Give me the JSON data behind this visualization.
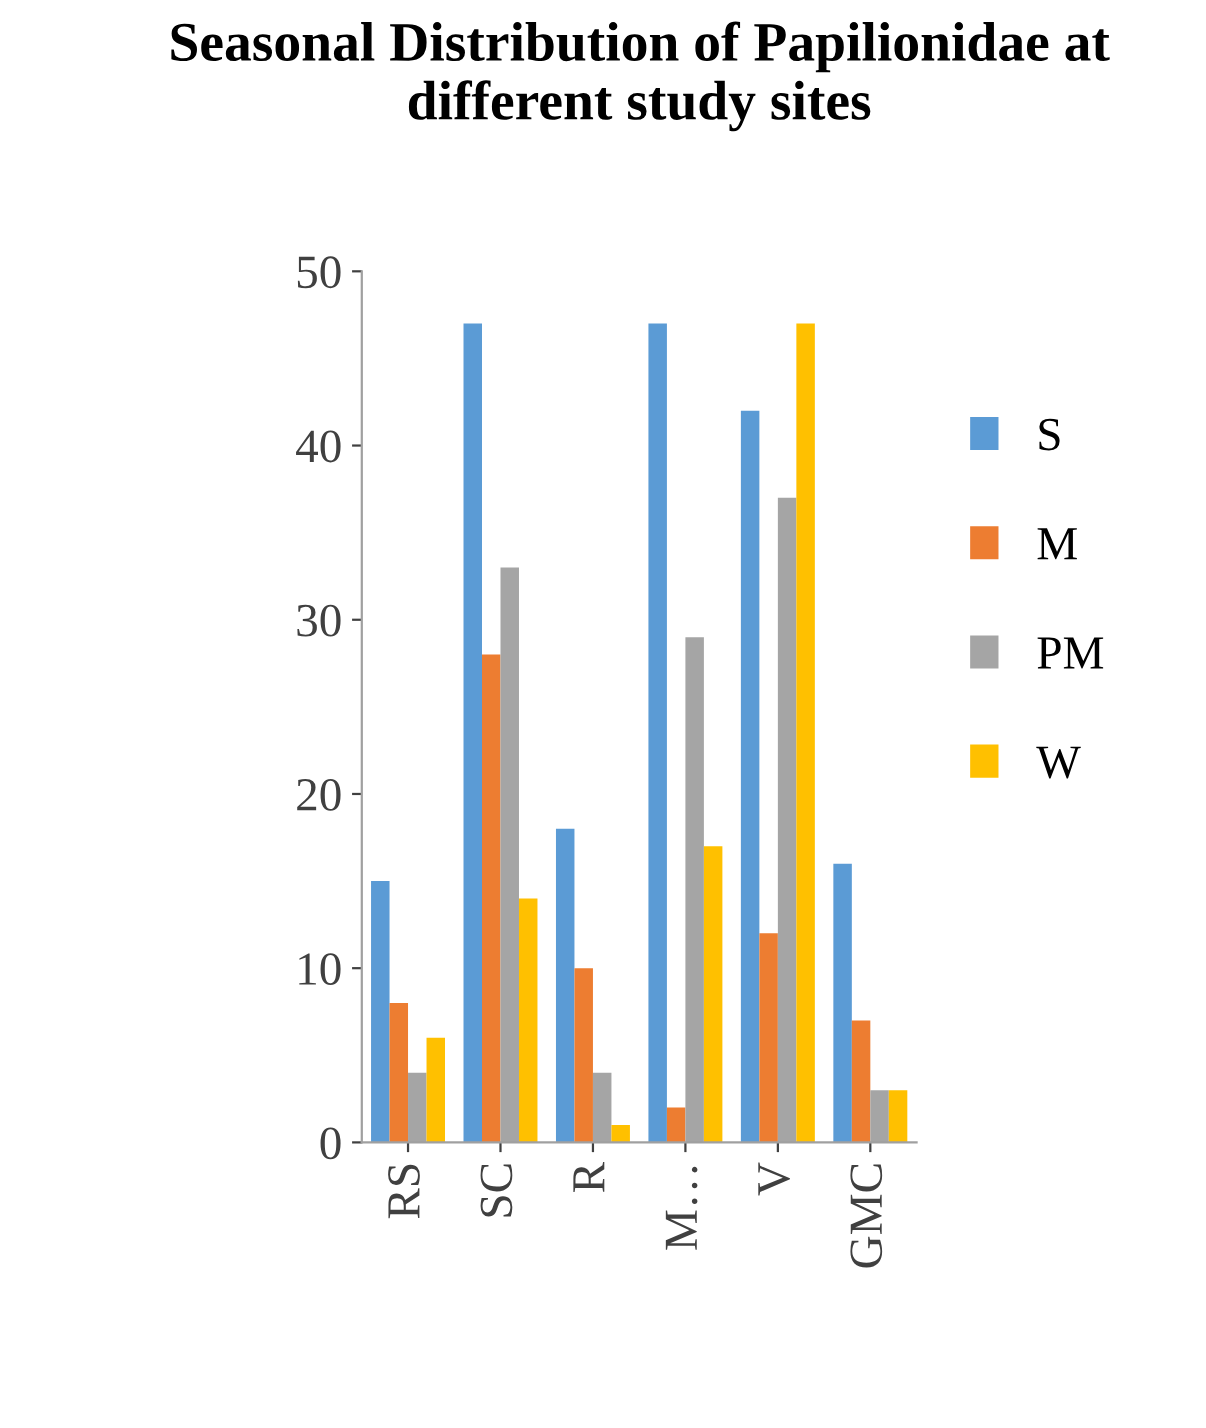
{
  "chart_data": {
    "type": "bar",
    "title": "Seasonal Distribution of Papilionidae at different study sites",
    "categories": [
      "RS",
      "SC",
      "R",
      "M…",
      "V",
      "GMC"
    ],
    "series": [
      {
        "name": "S",
        "color": "#5b9bd5",
        "values": [
          15,
          47,
          18,
          47,
          42,
          16
        ]
      },
      {
        "name": "M",
        "color": "#ed7d31",
        "values": [
          8,
          28,
          10,
          2,
          12,
          7
        ]
      },
      {
        "name": "PM",
        "color": "#a5a5a5",
        "values": [
          4,
          33,
          4,
          29,
          37,
          3
        ]
      },
      {
        "name": "W",
        "color": "#ffc000",
        "values": [
          6,
          14,
          1,
          17,
          47,
          3
        ]
      }
    ],
    "ylim": [
      0,
      50
    ],
    "yticks": [
      0,
      10,
      20,
      30,
      40,
      50
    ],
    "grid": false,
    "legend": "right"
  }
}
